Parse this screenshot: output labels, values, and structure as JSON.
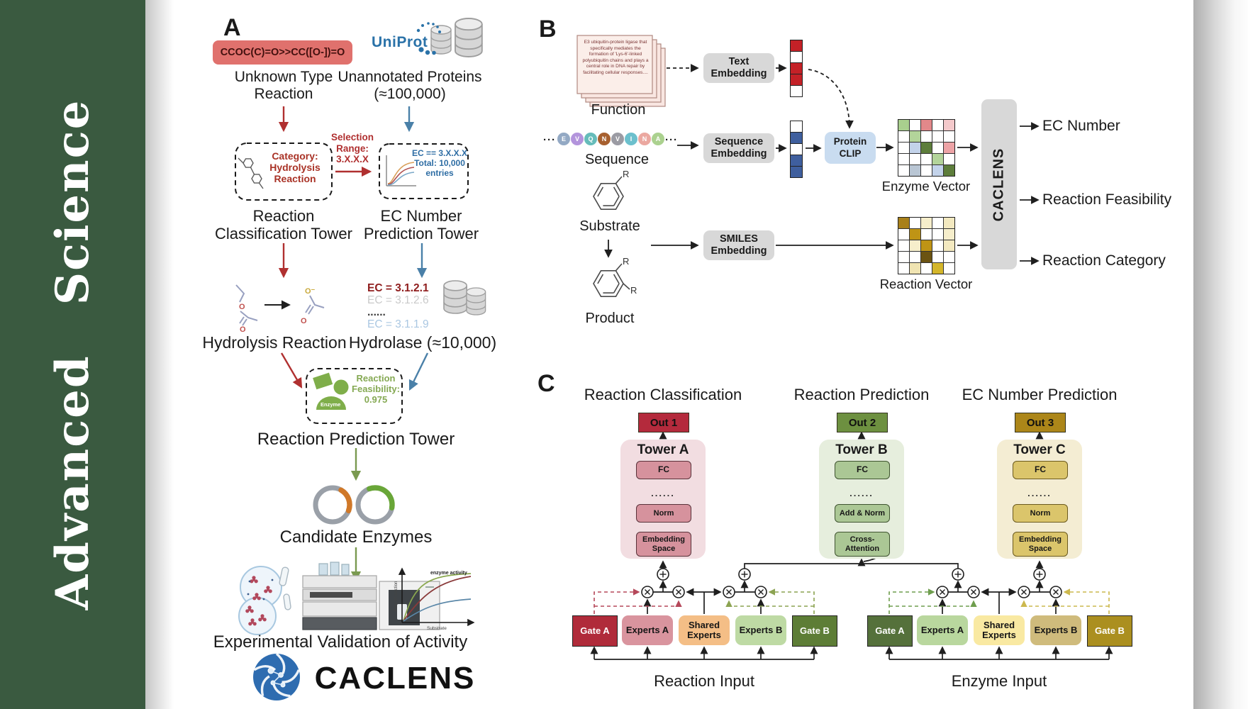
{
  "sidebar": {
    "journal": "Advanced  Science",
    "bg_color": "#3a5a40"
  },
  "palette": {
    "red_flow": "#b03030",
    "blue_flow": "#4a80a8",
    "green_flow": "#7a9a50",
    "uniprot_blue": "#2a72a8"
  },
  "panelA": {
    "label": "A",
    "smiles": "CCOC(C)=O>>CC([O-])=O",
    "unknown_reaction": "Unknown Type Reaction",
    "uniprot": "UniProt",
    "unannotated": "Unannotated Proteins (≈100,000)",
    "selection": "Selection Range: 3.X.X.X",
    "category": "Category: Hydrolysis Reaction",
    "ec_filter": "EC == 3.X.X.X Total: 10,000 entries",
    "classification_tower": "Reaction Classification Tower",
    "ec_tower": "EC Number Prediction Tower",
    "hydrolysis": "Hydrolysis Reaction",
    "hydrolase": "Hydrolase (≈10,000)",
    "ec_list": [
      {
        "text": "EC = 3.1.2.1",
        "color": "#8f1d1d",
        "bold": true
      },
      {
        "text": "EC = 3.1.2.6",
        "color": "#c9c9c9",
        "bold": false
      },
      {
        "text": "......",
        "color": "#3a3a3a",
        "bold": true
      },
      {
        "text": "EC = 3.1.1.9",
        "color": "#aac7e2",
        "bold": false
      }
    ],
    "enzyme_badge": "Enzyme",
    "feasibility": "Reaction Feasibility: 0.975",
    "prediction_tower": "Reaction Prediction Tower",
    "candidate": "Candidate Enzymes",
    "atom_o": "O",
    "atom_o_minus": "O⁻",
    "chart": {
      "ylabel": "Rate of reaction",
      "xlabel": "Substrate",
      "annotation": "enzyme activity"
    },
    "validation": "Experimental Validation of Activity",
    "logo": "CACLENS"
  },
  "panelB": {
    "label": "B",
    "function_card": "E3 ubiquitin-protein ligase that specifically mediates the formation of 'Lys-6'-linked polyubiquitin chains and plays a central role in DNA repair by facilitating cellular responses....",
    "function": "Function",
    "ellipsis": "···",
    "beads": [
      {
        "letter": "E",
        "color": "#93a9c4"
      },
      {
        "letter": "V",
        "color": "#b394dc"
      },
      {
        "letter": "Q",
        "color": "#66bcba"
      },
      {
        "letter": "N",
        "color": "#a7602f"
      },
      {
        "letter": "V",
        "color": "#9b9ba3"
      },
      {
        "letter": "I",
        "color": "#6cc0cd"
      },
      {
        "letter": "N",
        "color": "#eba8a0"
      },
      {
        "letter": "A",
        "color": "#abd18f"
      }
    ],
    "sequence": "Sequence",
    "substrate": "Substrate",
    "product": "Product",
    "r": "R",
    "text_embedding": "Text Embedding",
    "sequence_embedding": "Sequence Embedding",
    "smiles_embedding": "SMILES Embedding",
    "protein_clip": "Protein CLIP",
    "text_vector": [
      "#c42127",
      "#ffffff",
      "#c42127",
      "#c42127",
      "#ffffff"
    ],
    "sequence_vector": [
      "#ffffff",
      "#3f5f9e",
      "#ffffff",
      "#3f5f9e",
      "#3f5f9e"
    ],
    "enzyme_vector_label": "Enzyme Vector",
    "reaction_vector_label": "Reaction Vector",
    "enzyme_matrix": [
      [
        "#a9cf8e",
        "#ffffff",
        "#e2888a",
        "#ffffff",
        "#f4c9cb"
      ],
      [
        "#ffffff",
        "#b3d49a",
        "#ffffff",
        "#ffffff",
        "#ffffff"
      ],
      [
        "#ffffff",
        "#c3d3ea",
        "#5d7d3b",
        "#ffffff",
        "#eda3a6"
      ],
      [
        "#ffffff",
        "#ffffff",
        "#ffffff",
        "#b3d49a",
        "#ffffff"
      ],
      [
        "#ffffff",
        "#b9c6d4",
        "#ffffff",
        "#c3d3ea",
        "#5d7d3b"
      ]
    ],
    "reaction_matrix": [
      [
        "#a8801a",
        "#ffffff",
        "#f6eecb",
        "#ffffff",
        "#f3e9c0"
      ],
      [
        "#ffffff",
        "#bf9415",
        "#ffffff",
        "#ffffff",
        "#f6eecb"
      ],
      [
        "#ffffff",
        "#f6eecb",
        "#bf9415",
        "#ffffff",
        "#f3e9c0"
      ],
      [
        "#ffffff",
        "#ffffff",
        "#6b5312",
        "#ffffff",
        "#ffffff"
      ],
      [
        "#ffffff",
        "#f0e4b2",
        "#ffffff",
        "#d4b62a",
        "#ffffff"
      ]
    ],
    "caclens_bar": "CACLENS",
    "outputs": [
      "EC Number",
      "Reaction Feasibility",
      "Reaction Category"
    ]
  },
  "panelC": {
    "label": "C",
    "columns": [
      {
        "header": "Reaction Classification",
        "out": "Out 1",
        "tower": "Tower A",
        "fc": "FC",
        "dots": "......",
        "mid": "Norm",
        "bottom": "Embedding Space"
      },
      {
        "header": "Reaction Prediction",
        "out": "Out 2",
        "tower": "Tower B",
        "fc": "FC",
        "dots": "......",
        "mid": "Add & Norm",
        "bottom": "Cross- Attention"
      },
      {
        "header": "EC Number Prediction",
        "out": "Out 3",
        "tower": "Tower C",
        "fc": "FC",
        "dots": "......",
        "mid": "Norm",
        "bottom": "Embedding Space"
      }
    ],
    "moe": [
      {
        "gate_a": "Gate A",
        "experts_a": "Experts A",
        "shared": "Shared Experts",
        "experts_b": "Experts B",
        "gate_b": "Gate B",
        "input": "Reaction Input"
      },
      {
        "gate_a": "Gate A",
        "experts_a": "Experts A",
        "shared": "Shared Experts",
        "experts_b": "Experts B",
        "gate_b": "Gate B",
        "input": "Enzyme Input"
      }
    ]
  }
}
